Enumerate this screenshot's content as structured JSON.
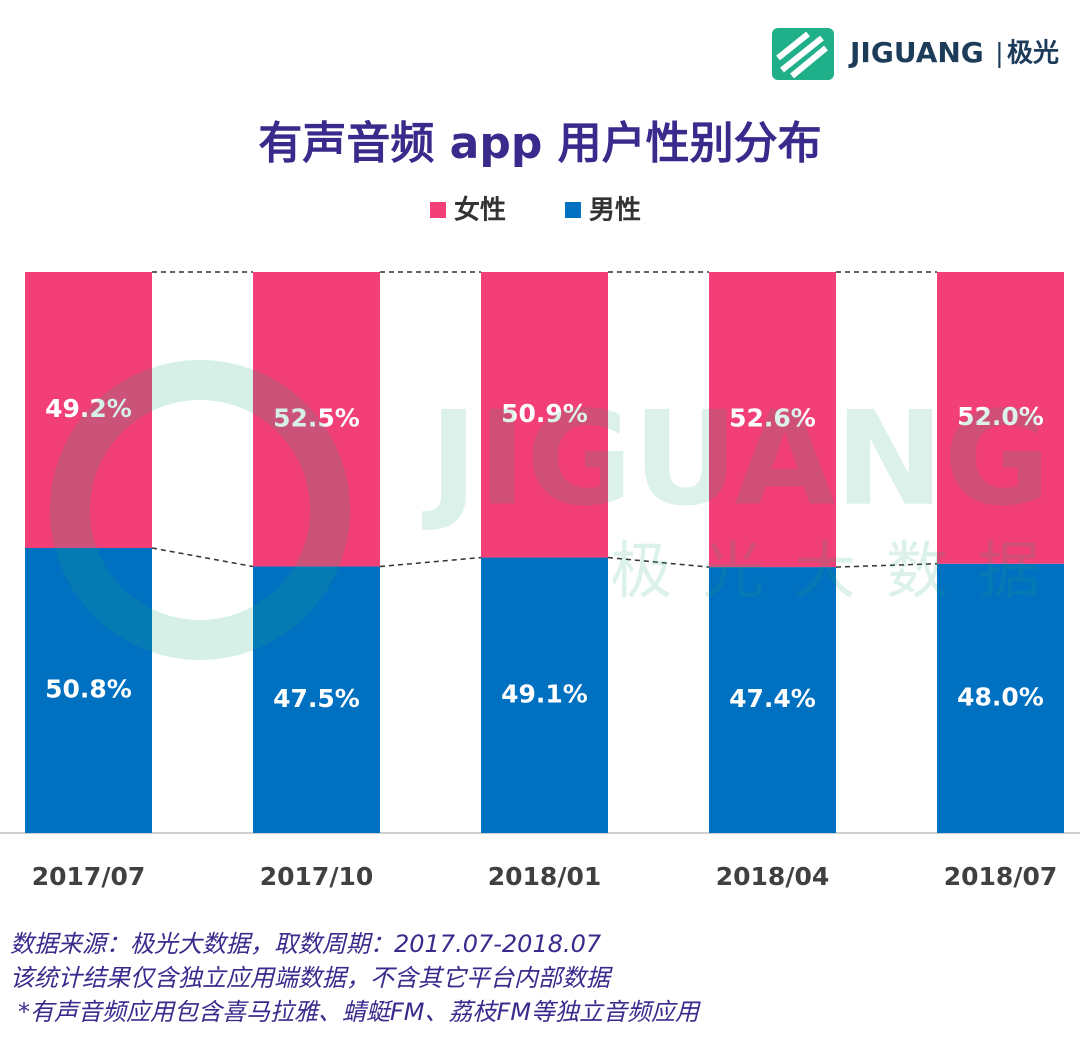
{
  "chart_data": {
    "type": "stacked_bar_percent",
    "title": "有声音频 app 用户性别分布",
    "categories": [
      "2017/07",
      "2017/10",
      "2018/01",
      "2018/04",
      "2018/07"
    ],
    "series": [
      {
        "name": "男性",
        "color": "#0070c0",
        "values": [
          50.8,
          47.5,
          49.1,
          47.4,
          48.0
        ],
        "value_labels": [
          "50.8%",
          "47.5%",
          "49.1%",
          "47.4%",
          "48.0%"
        ]
      },
      {
        "name": "女性",
        "color": "#f23f78",
        "values": [
          49.2,
          52.5,
          50.9,
          52.6,
          52.0
        ],
        "value_labels": [
          "49.2%",
          "52.5%",
          "50.9%",
          "52.6%",
          "52.0%"
        ]
      }
    ],
    "ylim": [
      0,
      100
    ],
    "notes": [
      "数据来源：极光大数据，取数周期：2017.07-2018.07",
      "该统计结果仅含独立应用端数据，不含其它平台内部数据",
      "*有声音频应用包含喜马拉雅、蜻蜓FM、荔枝FM等独立音频应用"
    ]
  },
  "logo": {
    "name": "JIGUANG",
    "separator": "|",
    "chinese": "极光"
  },
  "watermark": {
    "name": "JIGUANG",
    "chinese": "极光大数据"
  }
}
